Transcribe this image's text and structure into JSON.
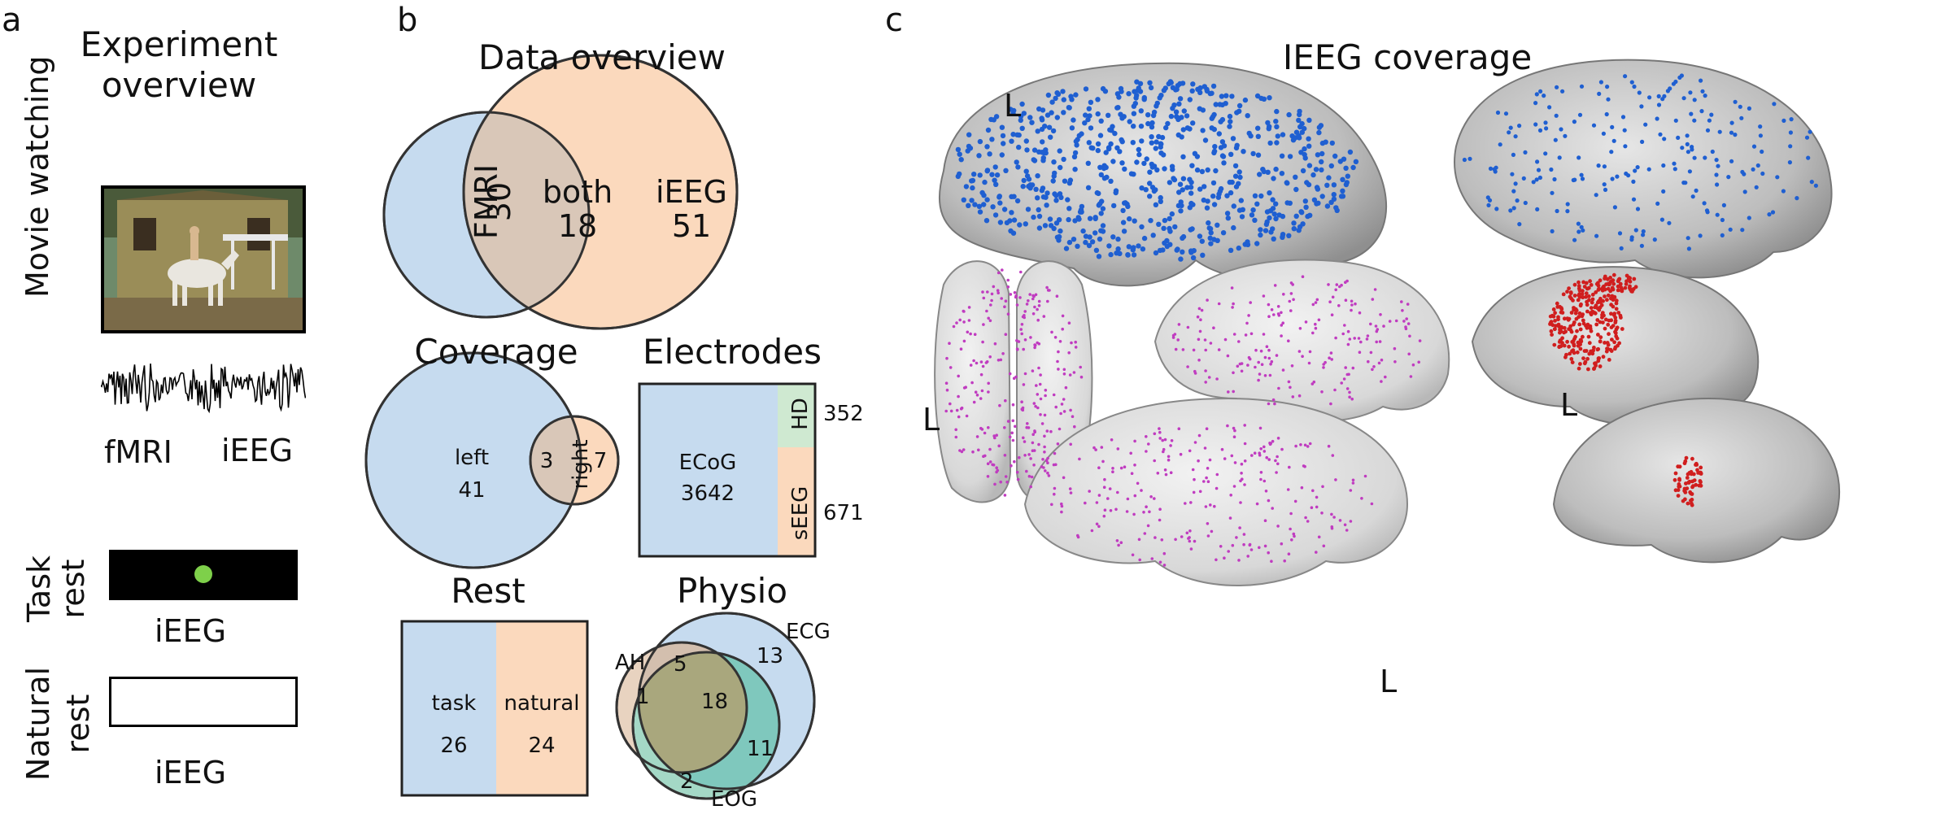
{
  "panels": {
    "a": {
      "letter": "a",
      "title_line1": "Experiment",
      "title_line2": "overview",
      "movie_label": "Movie watching",
      "modality_fmri": "fMRI",
      "modality_ieeg": "iEEG",
      "task_rest_line1": "Task",
      "task_rest_line2": "rest",
      "task_rest_modality": "iEEG",
      "natural_rest_line1": "Natural",
      "natural_rest_line2": "rest",
      "natural_rest_modality": "iEEG"
    },
    "b": {
      "letter": "b",
      "data_overview": {
        "title": "Data overview",
        "fmri_label": "FMRI",
        "fmri_value": "30",
        "both_label": "both",
        "both_value": "18",
        "ieeg_label": "iEEG",
        "ieeg_value": "51"
      },
      "coverage": {
        "title": "Coverage",
        "left_label": "left",
        "left_value": "41",
        "overlap_value": "3",
        "right_label": "right",
        "right_value": "7"
      },
      "electrodes": {
        "title": "Electrodes",
        "ecog_label": "ECoG",
        "ecog_value": "3642",
        "hd_label": "HD",
        "hd_value": "352",
        "seeg_label": "sEEG",
        "seeg_value": "671"
      },
      "rest": {
        "title": "Rest",
        "task_label": "task",
        "task_value": "26",
        "natural_label": "natural",
        "natural_value": "24"
      },
      "physio": {
        "title": "Physio",
        "ah_label": "AH",
        "ecg_label": "ECG",
        "eog_label": "EOG",
        "ah_only": "1",
        "ah_ecg": "5",
        "ecg_only": "13",
        "all_three": "18",
        "ecg_eog": "11",
        "eog_only": "2"
      }
    },
    "c": {
      "letter": "c",
      "title": "IEEG coverage",
      "l_label_1": "L",
      "l_label_2": "L",
      "l_label_3": "L",
      "l_label_4": "L"
    }
  },
  "colors": {
    "blue_fill": "#c6dbef",
    "peach_fill": "#fbd9bd",
    "overlap_fill": "#d9c7b8",
    "green_fill": "#cfe9d1",
    "teal_fill": "#7fc8bd",
    "olive_fill": "#a9a77d",
    "electrode_blue": "#1f5fd1",
    "electrode_magenta": "#c03cc0",
    "electrode_red": "#d01e1e",
    "task_dot": "#7ed04a"
  }
}
